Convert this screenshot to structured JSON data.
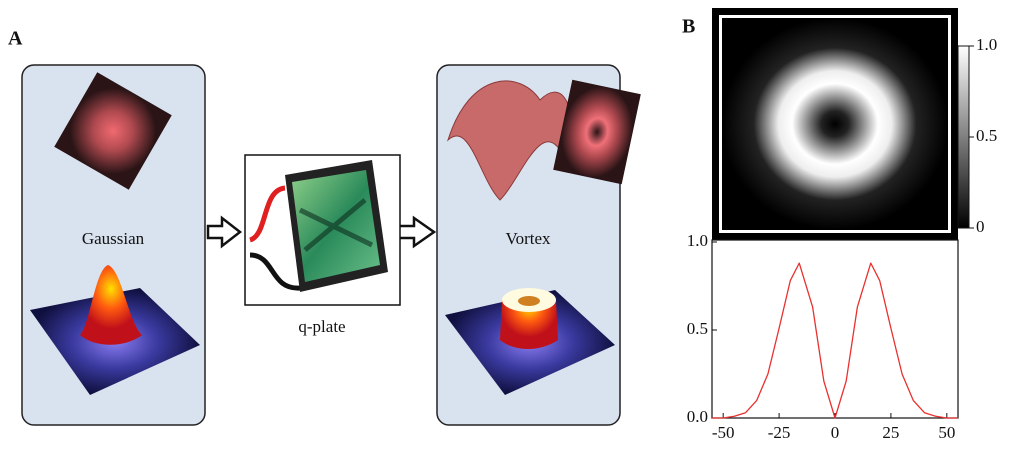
{
  "panel_a": {
    "label": "A",
    "input_label": "Gaussian",
    "device_label": "q-plate",
    "output_label": "Vortex"
  },
  "panel_b": {
    "label": "B",
    "colorbar": {
      "lim": [
        0,
        1
      ],
      "ticks": [
        {
          "value": 1,
          "label": "1.0"
        },
        {
          "value": 0.5,
          "label": "0.5"
        },
        0
      ]
    }
  },
  "chart_data": {
    "type": "line",
    "color": "#e8312f",
    "x": [
      -55,
      -50,
      -45,
      -40,
      -35,
      -30,
      -25,
      -20,
      -16,
      -10,
      -5,
      0,
      5,
      10,
      16,
      20,
      25,
      30,
      35,
      40,
      45,
      50,
      55
    ],
    "values": [
      0,
      0,
      0.01,
      0.03,
      0.1,
      0.25,
      0.51,
      0.78,
      0.88,
      0.63,
      0.21,
      0,
      0.21,
      0.63,
      0.88,
      0.78,
      0.51,
      0.25,
      0.1,
      0.03,
      0.01,
      0,
      0
    ],
    "xlim": [
      -55,
      55
    ],
    "ylim": [
      0,
      1
    ],
    "xticks": [
      -50,
      -25,
      0,
      25,
      50
    ],
    "yticks": [
      {
        "value": 0,
        "label": "0.0"
      },
      {
        "value": 0.5,
        "label": "0.5"
      },
      {
        "value": 1,
        "label": "1.0"
      }
    ]
  }
}
